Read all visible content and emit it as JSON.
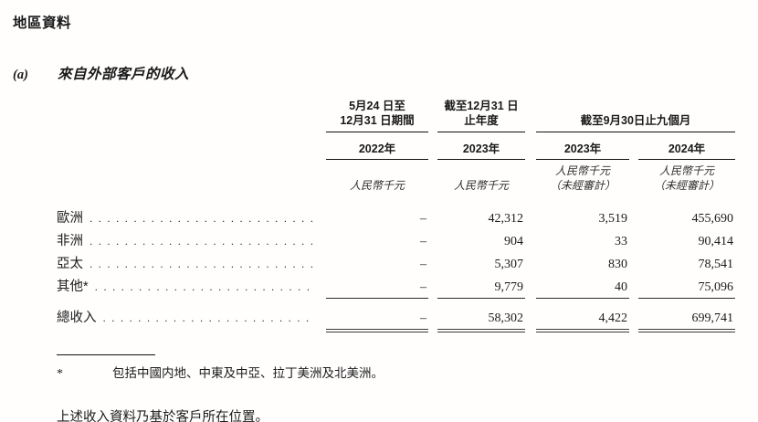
{
  "page": {
    "title": "地區資料",
    "section_label": "(a)",
    "section_title": "來自外部客戶的收入",
    "footnote_marker": "*",
    "footnote_text": "包括中國内地、中東及中亞、拉丁美洲及北美洲。",
    "closing_text": "上述收入資料乃基於客戶所在位置。"
  },
  "table": {
    "periods": {
      "col1_line1": "5月24 日至",
      "col1_line2": "12月31 日期間",
      "col2_line1": "截至12月31 日",
      "col2_line2": "止年度",
      "group": "截至9月30日止九個月"
    },
    "years": [
      "2022年",
      "2023年",
      "2023年",
      "2024年"
    ],
    "units": {
      "currency": "人民幣千元",
      "unaudited": "（未經審計）"
    },
    "rows": [
      {
        "label": "歐洲",
        "values": [
          "–",
          "42,312",
          "3,519",
          "455,690"
        ]
      },
      {
        "label": "非洲",
        "values": [
          "–",
          "904",
          "33",
          "90,414"
        ]
      },
      {
        "label": "亞太",
        "values": [
          "–",
          "5,307",
          "830",
          "78,541"
        ]
      },
      {
        "label": "其他*",
        "values": [
          "–",
          "9,779",
          "40",
          "75,096"
        ]
      }
    ],
    "total_row": {
      "label": "總收入",
      "values": [
        "–",
        "58,302",
        "4,422",
        "699,741"
      ]
    }
  }
}
